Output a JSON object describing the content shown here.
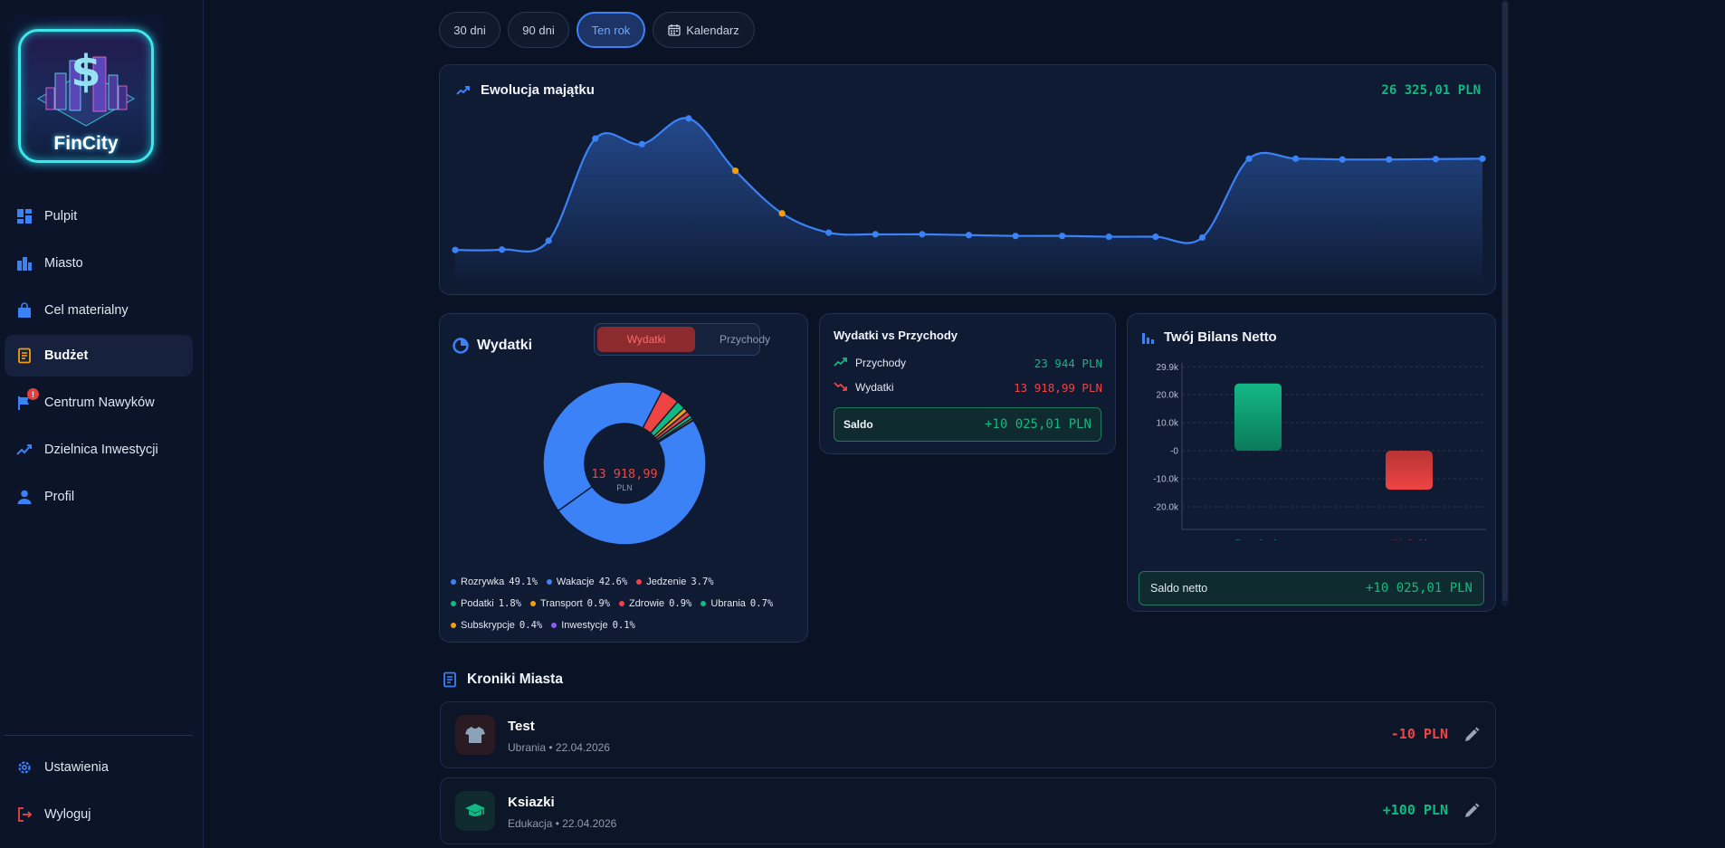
{
  "app": {
    "logo_text": "FinCity"
  },
  "sidebar": {
    "items": [
      {
        "label": "Pulpit",
        "icon": "dashboard-icon"
      },
      {
        "label": "Miasto",
        "icon": "city-icon"
      },
      {
        "label": "Cel materialny",
        "icon": "shopping-bag-icon"
      },
      {
        "label": "Budżet",
        "icon": "receipt-icon",
        "active": true
      },
      {
        "label": "Centrum Nawyków",
        "icon": "flag-icon",
        "badge": "!"
      },
      {
        "label": "Dzielnica Inwestycji",
        "icon": "trending-up-icon"
      },
      {
        "label": "Profil",
        "icon": "person-icon"
      }
    ],
    "bottom": [
      {
        "label": "Ustawienia",
        "icon": "gear-icon"
      },
      {
        "label": "Wyloguj",
        "icon": "logout-icon"
      }
    ]
  },
  "period_tabs": {
    "items": [
      "30 dni",
      "90 dni",
      "Ten rok",
      "Kalendarz"
    ],
    "active": "Ten rok"
  },
  "wealth": {
    "title": "Ewolucja majątku",
    "total": "26 325,01 PLN"
  },
  "expenses_card": {
    "title": "Wydatki",
    "toggle": {
      "expenses": "Wydatki",
      "income": "Przychody",
      "active": "Wydatki"
    },
    "center_value": "13 918,99",
    "center_unit": "PLN",
    "categories": [
      {
        "name": "Rozrywka",
        "pct": "49.1%",
        "value": 49.1,
        "color": "#3b82f6"
      },
      {
        "name": "Wakacje",
        "pct": "42.6%",
        "value": 42.6,
        "color": "#3b82f6"
      },
      {
        "name": "Jedzenie",
        "pct": "3.7%",
        "value": 3.7,
        "color": "#ef4444"
      },
      {
        "name": "Podatki",
        "pct": "1.8%",
        "value": 1.8,
        "color": "#10b981"
      },
      {
        "name": "Transport",
        "pct": "0.9%",
        "value": 0.9,
        "color": "#f59e0b"
      },
      {
        "name": "Zdrowie",
        "pct": "0.9%",
        "value": 0.9,
        "color": "#ef4444"
      },
      {
        "name": "Ubrania",
        "pct": "0.7%",
        "value": 0.7,
        "color": "#10b981"
      },
      {
        "name": "Subskrypcje",
        "pct": "0.4%",
        "value": 0.4,
        "color": "#f59e0b"
      },
      {
        "name": "Inwestycje",
        "pct": "0.1%",
        "value": 0.1,
        "color": "#8b5cf6"
      }
    ]
  },
  "vs_card": {
    "title": "Wydatki vs Przychody",
    "income_label": "Przychody",
    "income_value": "23 944 PLN",
    "expense_label": "Wydatki",
    "expense_value": "13 918,99 PLN",
    "saldo_label": "Saldo",
    "saldo_value": "+10 025,01 PLN"
  },
  "net_card": {
    "title": "Twój Bilans Netto",
    "footer_label": "Saldo netto",
    "footer_value": "+10 025,01 PLN"
  },
  "chronicles": {
    "title": "Kroniki Miasta",
    "items": [
      {
        "title": "Test",
        "category": "Ubrania",
        "date": "22.04.2026",
        "amount": "-10 PLN",
        "icon": "tshirt-icon",
        "type": "expense"
      },
      {
        "title": "Ksiazki",
        "category": "Edukacja",
        "date": "22.04.2026",
        "amount": "+100 PLN",
        "icon": "graduation-cap-icon",
        "type": "income"
      }
    ]
  },
  "chart_data": [
    {
      "type": "area",
      "title": "Ewolucja majątku",
      "x": [
        1,
        2,
        3,
        4,
        5,
        6,
        7,
        8,
        9,
        10,
        11,
        12,
        13,
        14,
        15,
        16,
        17,
        18,
        19,
        20,
        21,
        22,
        23
      ],
      "values": [
        650,
        700,
        1800,
        14500,
        13800,
        17000,
        10500,
        5200,
        2800,
        2600,
        2600,
        2500,
        2400,
        2400,
        2300,
        2300,
        2200,
        12000,
        12000,
        11900,
        11900,
        11950,
        12000
      ],
      "highlighted_points": [
        7,
        8
      ],
      "colors": {
        "line": "#3b82f6",
        "highlight": "#f59e0b"
      }
    },
    {
      "type": "pie",
      "title": "Wydatki",
      "labels": [
        "Rozrywka",
        "Wakacje",
        "Jedzenie",
        "Podatki",
        "Transport",
        "Zdrowie",
        "Ubrania",
        "Subskrypcje",
        "Inwestycje"
      ],
      "values": [
        49.1,
        42.6,
        3.7,
        1.8,
        0.9,
        0.9,
        0.7,
        0.4,
        0.1
      ]
    },
    {
      "type": "bar",
      "title": "Twój Bilans Netto",
      "categories": [
        "Przychody",
        "Wydatki"
      ],
      "values": [
        23944,
        -13918.99
      ],
      "yticks": [
        "29.9k",
        "20.0k",
        "10.0k",
        "-0",
        "-10.0k",
        "-20.0k"
      ],
      "ylim": [
        -29900,
        29900
      ],
      "colors": [
        "#10b981",
        "#ef4444"
      ]
    }
  ]
}
